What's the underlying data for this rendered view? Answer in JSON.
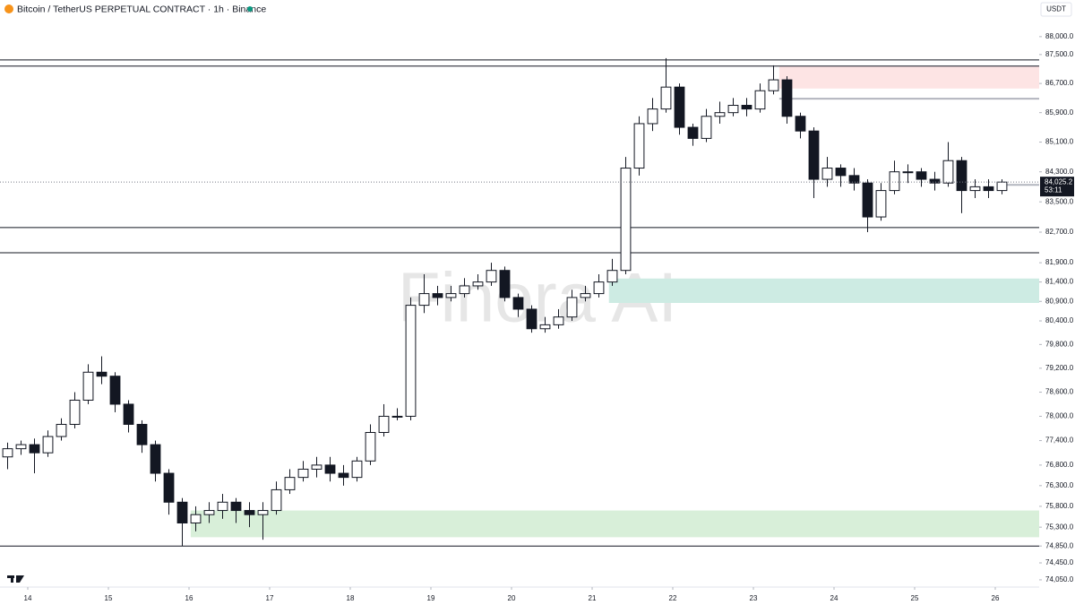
{
  "chart_data": {
    "type": "candlestick",
    "title": "Bitcoin / TetherUS PERPETUAL CONTRACT · 1h · Binance",
    "currency": "USDT",
    "watermark": "Finora AI",
    "log_scale": true,
    "up_color": "#ffffff",
    "down_color": "#131722",
    "wick_color": "#131722",
    "x": [
      -8,
      -4,
      0,
      4,
      8,
      12,
      16,
      20,
      24,
      28,
      32,
      36,
      40,
      44,
      48,
      52,
      56,
      60,
      64,
      68,
      72,
      76,
      80,
      84,
      88,
      92,
      96,
      100,
      104,
      108,
      112,
      116,
      120,
      124,
      128,
      132,
      136,
      140,
      144,
      148,
      152,
      156,
      160,
      164,
      168,
      172,
      176,
      180,
      184,
      188,
      192,
      196,
      200,
      204,
      208,
      212,
      216,
      220,
      224,
      228,
      232,
      236,
      240,
      244,
      248,
      252,
      256,
      260,
      264,
      268,
      272,
      276,
      280,
      284,
      288
    ],
    "open": [
      77000,
      77200,
      77300,
      77100,
      77500,
      77800,
      78400,
      79100,
      79000,
      78300,
      77800,
      77300,
      76600,
      75900,
      75400,
      75600,
      75700,
      75900,
      75700,
      75600,
      75700,
      76200,
      76500,
      76700,
      76800,
      76600,
      76500,
      76900,
      77600,
      78000,
      78000,
      80800,
      81100,
      81000,
      81100,
      81300,
      81400,
      81700,
      81000,
      80700,
      80200,
      80300,
      80500,
      81000,
      81100,
      81400,
      81700,
      84400,
      85600,
      86000,
      86600,
      85500,
      85200,
      85800,
      85900,
      86100,
      86000,
      86500,
      86800,
      85800,
      85400,
      84100,
      84400,
      84200,
      84000,
      83100,
      83800,
      84300,
      84300,
      84100,
      84000,
      84600,
      83800,
      83900,
      83800
    ],
    "high": [
      77350,
      77400,
      77450,
      77650,
      77950,
      78600,
      79300,
      79500,
      79100,
      78400,
      77900,
      77400,
      76700,
      76000,
      75800,
      75900,
      76100,
      76000,
      75900,
      75900,
      76400,
      76700,
      76900,
      77000,
      77000,
      76800,
      77000,
      77800,
      78300,
      78200,
      81000,
      81600,
      81300,
      81300,
      81500,
      81600,
      81900,
      81800,
      81100,
      80800,
      80500,
      80700,
      81200,
      81300,
      81600,
      82000,
      84700,
      85800,
      86300,
      87400,
      86700,
      85600,
      86000,
      86200,
      86300,
      86300,
      86700,
      87200,
      86900,
      85900,
      85500,
      84700,
      84500,
      84400,
      84100,
      84000,
      84600,
      84500,
      84400,
      84300,
      85100,
      84700,
      84100,
      84100,
      84100
    ],
    "low": [
      76700,
      77050,
      76600,
      77000,
      77400,
      77700,
      78300,
      78800,
      78100,
      77600,
      77100,
      76400,
      75600,
      74850,
      75200,
      75400,
      75500,
      75400,
      75300,
      75000,
      75600,
      76100,
      76400,
      76500,
      76400,
      76300,
      76400,
      76800,
      77500,
      77900,
      77900,
      80600,
      80800,
      80900,
      81000,
      81200,
      81300,
      80900,
      80500,
      80100,
      80100,
      80200,
      80400,
      80900,
      81000,
      81300,
      81600,
      84200,
      85400,
      85900,
      85300,
      85000,
      85100,
      85600,
      85800,
      85800,
      85900,
      86400,
      85600,
      85200,
      83600,
      83900,
      83900,
      83800,
      82700,
      83000,
      83700,
      84000,
      83900,
      83800,
      83900,
      83200,
      83600,
      83600,
      83700
    ],
    "close": [
      77200,
      77300,
      77100,
      77500,
      77800,
      78400,
      79100,
      79000,
      78300,
      77800,
      77300,
      76600,
      75900,
      75400,
      75600,
      75700,
      75900,
      75700,
      75600,
      75700,
      76200,
      76500,
      76700,
      76800,
      76600,
      76500,
      76900,
      77600,
      78000,
      78000,
      80800,
      81100,
      81000,
      81100,
      81300,
      81400,
      81700,
      81000,
      80700,
      80200,
      80300,
      80500,
      81000,
      81100,
      81400,
      81700,
      84400,
      85600,
      86000,
      86600,
      85500,
      85200,
      85800,
      85900,
      86100,
      86000,
      86500,
      86800,
      85800,
      85400,
      84100,
      84400,
      84200,
      84000,
      83100,
      83800,
      84300,
      84300,
      84100,
      84000,
      84600,
      83800,
      83900,
      83800,
      84025.2
    ],
    "last_price_label": "84,025.2",
    "countdown": "53:11",
    "xlim": [
      -8.27,
      301.07
    ],
    "ylim": [
      73880,
      89030
    ],
    "xticks": [
      {
        "value": 0,
        "label": "14"
      },
      {
        "value": 24,
        "label": "15"
      },
      {
        "value": 48,
        "label": "16"
      },
      {
        "value": 72,
        "label": "17"
      },
      {
        "value": 96,
        "label": "18"
      },
      {
        "value": 120,
        "label": "19"
      },
      {
        "value": 144,
        "label": "20"
      },
      {
        "value": 168,
        "label": "21"
      },
      {
        "value": 192,
        "label": "22"
      },
      {
        "value": 216,
        "label": "23"
      },
      {
        "value": 240,
        "label": "24"
      },
      {
        "value": 264,
        "label": "25"
      },
      {
        "value": 288,
        "label": "26"
      }
    ],
    "yticks": [
      {
        "value": 88000,
        "label": "88,000.0"
      },
      {
        "value": 87500,
        "label": "87,500.0"
      },
      {
        "value": 86700,
        "label": "86,700.0"
      },
      {
        "value": 85900,
        "label": "85,900.0"
      },
      {
        "value": 85100,
        "label": "85,100.0"
      },
      {
        "value": 84300,
        "label": "84,300.0"
      },
      {
        "value": 83500,
        "label": "83,500.0"
      },
      {
        "value": 82700,
        "label": "82,700.0"
      },
      {
        "value": 81900,
        "label": "81,900.0"
      },
      {
        "value": 81400,
        "label": "81,400.0"
      },
      {
        "value": 80900,
        "label": "80,900.0"
      },
      {
        "value": 80400,
        "label": "80,400.0"
      },
      {
        "value": 79800,
        "label": "79,800.0"
      },
      {
        "value": 79200,
        "label": "79,200.0"
      },
      {
        "value": 78600,
        "label": "78,600.0"
      },
      {
        "value": 78000,
        "label": "78,000.0"
      },
      {
        "value": 77400,
        "label": "77,400.0"
      },
      {
        "value": 76800,
        "label": "76,800.0"
      },
      {
        "value": 76300,
        "label": "76,300.0"
      },
      {
        "value": 75800,
        "label": "75,800.0"
      },
      {
        "value": 75300,
        "label": "75,300.0"
      },
      {
        "value": 74850,
        "label": "74,850.0"
      },
      {
        "value": 74450,
        "label": "74,450.0"
      },
      {
        "value": 74050,
        "label": "74,050.0"
      }
    ],
    "levels": [
      87350,
      87180,
      82820,
      82160,
      74850
    ],
    "level_color": "#131722",
    "gray_levels": [
      {
        "value": 86280,
        "x_start": 223.7
      },
      {
        "value": 83950,
        "x_start": 290
      }
    ],
    "zones": [
      {
        "from": 86560,
        "to": 87180,
        "x_start": 223.7,
        "color": "#fde4e4"
      },
      {
        "from": 80860,
        "to": 81490,
        "x_start": 173,
        "color": "#cdebe3"
      },
      {
        "from": 75060,
        "to": 75700,
        "x_start": 48.5,
        "color": "#d8efd9"
      }
    ]
  }
}
